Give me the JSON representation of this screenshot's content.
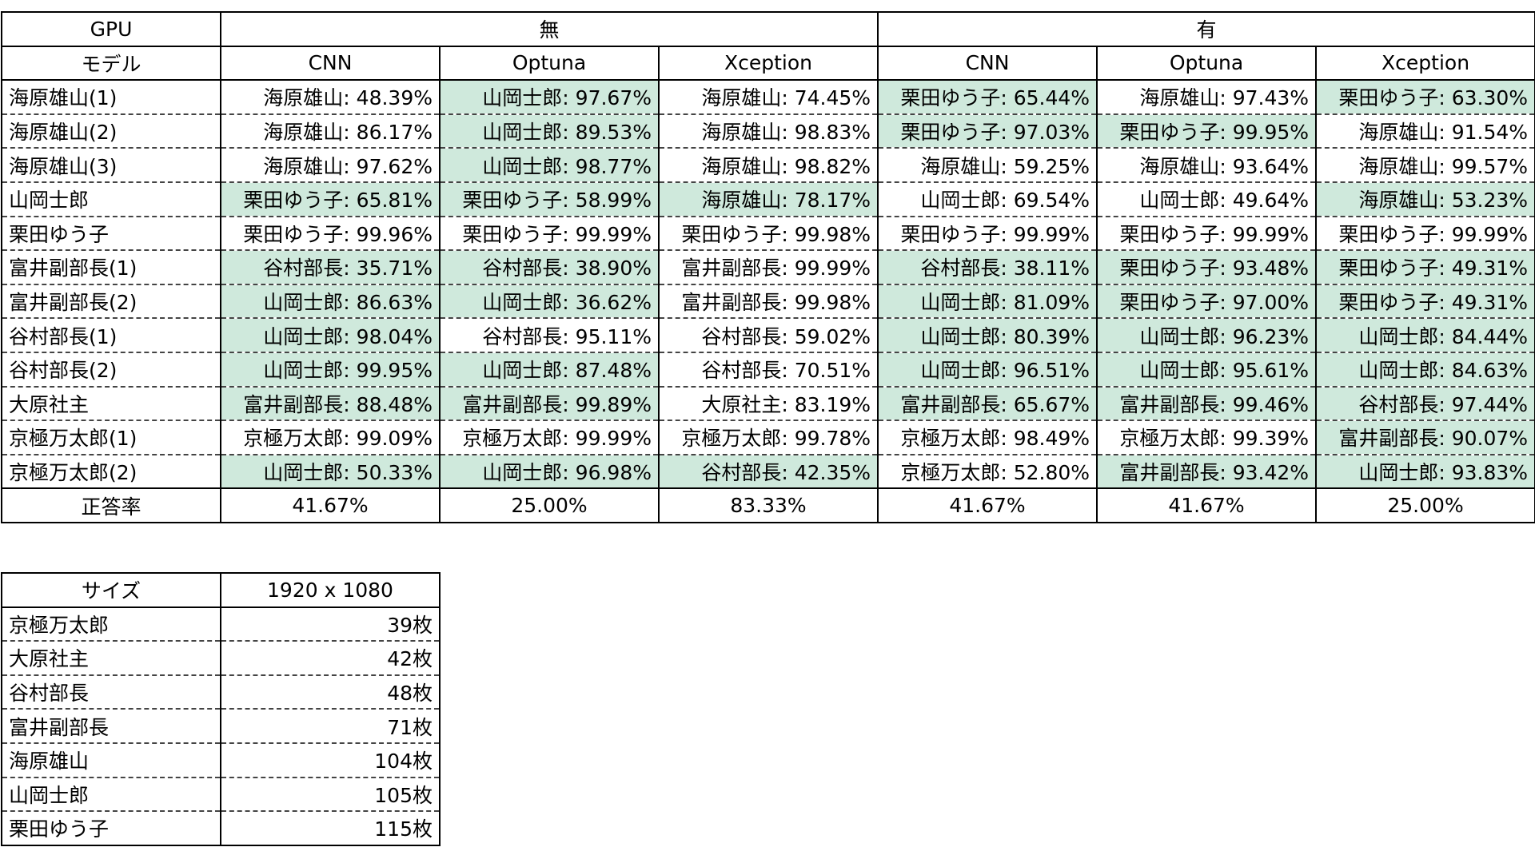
{
  "colors": {
    "highlight": "#cfe9dc",
    "border": "#000000"
  },
  "results_table": {
    "corner_top": "GPU",
    "corner_bottom": "モデル",
    "groups": [
      "無",
      "有"
    ],
    "models": [
      "CNN",
      "Optuna",
      "Xception",
      "CNN",
      "Optuna",
      "Xception"
    ],
    "rows": [
      {
        "label": "海原雄山(1)",
        "cells": [
          {
            "text": "海原雄山: 48.39%",
            "hl": false
          },
          {
            "text": "山岡士郎: 97.67%",
            "hl": true
          },
          {
            "text": "海原雄山: 74.45%",
            "hl": false
          },
          {
            "text": "栗田ゆう子: 65.44%",
            "hl": true
          },
          {
            "text": "海原雄山: 97.43%",
            "hl": false
          },
          {
            "text": "栗田ゆう子: 63.30%",
            "hl": true
          }
        ]
      },
      {
        "label": "海原雄山(2)",
        "cells": [
          {
            "text": "海原雄山: 86.17%",
            "hl": false
          },
          {
            "text": "山岡士郎: 89.53%",
            "hl": true
          },
          {
            "text": "海原雄山: 98.83%",
            "hl": false
          },
          {
            "text": "栗田ゆう子: 97.03%",
            "hl": true
          },
          {
            "text": "栗田ゆう子: 99.95%",
            "hl": true
          },
          {
            "text": "海原雄山: 91.54%",
            "hl": false
          }
        ]
      },
      {
        "label": "海原雄山(3)",
        "cells": [
          {
            "text": "海原雄山: 97.62%",
            "hl": false
          },
          {
            "text": "山岡士郎: 98.77%",
            "hl": true
          },
          {
            "text": "海原雄山: 98.82%",
            "hl": false
          },
          {
            "text": "海原雄山: 59.25%",
            "hl": false
          },
          {
            "text": "海原雄山: 93.64%",
            "hl": false
          },
          {
            "text": "海原雄山: 99.57%",
            "hl": false
          }
        ]
      },
      {
        "label": "山岡士郎",
        "cells": [
          {
            "text": "栗田ゆう子: 65.81%",
            "hl": true
          },
          {
            "text": "栗田ゆう子: 58.99%",
            "hl": true
          },
          {
            "text": "海原雄山: 78.17%",
            "hl": true
          },
          {
            "text": "山岡士郎: 69.54%",
            "hl": false
          },
          {
            "text": "山岡士郎: 49.64%",
            "hl": false
          },
          {
            "text": "海原雄山: 53.23%",
            "hl": true
          }
        ]
      },
      {
        "label": "栗田ゆう子",
        "cells": [
          {
            "text": "栗田ゆう子: 99.96%",
            "hl": false
          },
          {
            "text": "栗田ゆう子: 99.99%",
            "hl": false
          },
          {
            "text": "栗田ゆう子: 99.98%",
            "hl": false
          },
          {
            "text": "栗田ゆう子: 99.99%",
            "hl": false
          },
          {
            "text": "栗田ゆう子: 99.99%",
            "hl": false
          },
          {
            "text": "栗田ゆう子: 99.99%",
            "hl": false
          }
        ]
      },
      {
        "label": "富井副部長(1)",
        "cells": [
          {
            "text": "谷村部長: 35.71%",
            "hl": true
          },
          {
            "text": "谷村部長: 38.90%",
            "hl": true
          },
          {
            "text": "富井副部長: 99.99%",
            "hl": false
          },
          {
            "text": "谷村部長: 38.11%",
            "hl": true
          },
          {
            "text": "栗田ゆう子: 93.48%",
            "hl": true
          },
          {
            "text": "栗田ゆう子: 49.31%",
            "hl": true
          }
        ]
      },
      {
        "label": "富井副部長(2)",
        "cells": [
          {
            "text": "山岡士郎: 86.63%",
            "hl": true
          },
          {
            "text": "山岡士郎: 36.62%",
            "hl": true
          },
          {
            "text": "富井副部長: 99.98%",
            "hl": false
          },
          {
            "text": "山岡士郎: 81.09%",
            "hl": true
          },
          {
            "text": "栗田ゆう子: 97.00%",
            "hl": true
          },
          {
            "text": "栗田ゆう子: 49.31%",
            "hl": true
          }
        ]
      },
      {
        "label": "谷村部長(1)",
        "cells": [
          {
            "text": "山岡士郎: 98.04%",
            "hl": true
          },
          {
            "text": "谷村部長: 95.11%",
            "hl": false
          },
          {
            "text": "谷村部長: 59.02%",
            "hl": false
          },
          {
            "text": "山岡士郎: 80.39%",
            "hl": true
          },
          {
            "text": "山岡士郎: 96.23%",
            "hl": true
          },
          {
            "text": "山岡士郎: 84.44%",
            "hl": true
          }
        ]
      },
      {
        "label": "谷村部長(2)",
        "cells": [
          {
            "text": "山岡士郎: 99.95%",
            "hl": true
          },
          {
            "text": "山岡士郎: 87.48%",
            "hl": true
          },
          {
            "text": "谷村部長: 70.51%",
            "hl": false
          },
          {
            "text": "山岡士郎: 96.51%",
            "hl": true
          },
          {
            "text": "山岡士郎: 95.61%",
            "hl": true
          },
          {
            "text": "山岡士郎: 84.63%",
            "hl": true
          }
        ]
      },
      {
        "label": "大原社主",
        "cells": [
          {
            "text": "富井副部長: 88.48%",
            "hl": true
          },
          {
            "text": "富井副部長: 99.89%",
            "hl": true
          },
          {
            "text": "大原社主: 83.19%",
            "hl": false
          },
          {
            "text": "富井副部長: 65.67%",
            "hl": true
          },
          {
            "text": "富井副部長: 99.46%",
            "hl": true
          },
          {
            "text": "谷村部長: 97.44%",
            "hl": true
          }
        ]
      },
      {
        "label": "京極万太郎(1)",
        "cells": [
          {
            "text": "京極万太郎: 99.09%",
            "hl": false
          },
          {
            "text": "京極万太郎: 99.99%",
            "hl": false
          },
          {
            "text": "京極万太郎: 99.78%",
            "hl": false
          },
          {
            "text": "京極万太郎: 98.49%",
            "hl": false
          },
          {
            "text": "京極万太郎: 99.39%",
            "hl": false
          },
          {
            "text": "富井副部長: 90.07%",
            "hl": true
          }
        ]
      },
      {
        "label": "京極万太郎(2)",
        "cells": [
          {
            "text": "山岡士郎: 50.33%",
            "hl": true
          },
          {
            "text": "山岡士郎: 96.98%",
            "hl": true
          },
          {
            "text": "谷村部長: 42.35%",
            "hl": true
          },
          {
            "text": "京極万太郎: 52.80%",
            "hl": false
          },
          {
            "text": "富井副部長: 93.42%",
            "hl": true
          },
          {
            "text": "山岡士郎: 93.83%",
            "hl": true
          }
        ]
      }
    ],
    "accuracy_label": "正答率",
    "accuracy": [
      "41.67%",
      "25.00%",
      "83.33%",
      "41.67%",
      "41.67%",
      "25.00%"
    ]
  },
  "size_table": {
    "header_label": "サイズ",
    "header_value": "1920 x 1080",
    "rows": [
      {
        "name": "京極万太郎",
        "count": "39枚"
      },
      {
        "name": "大原社主",
        "count": "42枚"
      },
      {
        "name": "谷村部長",
        "count": "48枚"
      },
      {
        "name": "富井副部長",
        "count": "71枚"
      },
      {
        "name": "海原雄山",
        "count": "104枚"
      },
      {
        "name": "山岡士郎",
        "count": "105枚"
      },
      {
        "name": "栗田ゆう子",
        "count": "115枚"
      }
    ]
  }
}
